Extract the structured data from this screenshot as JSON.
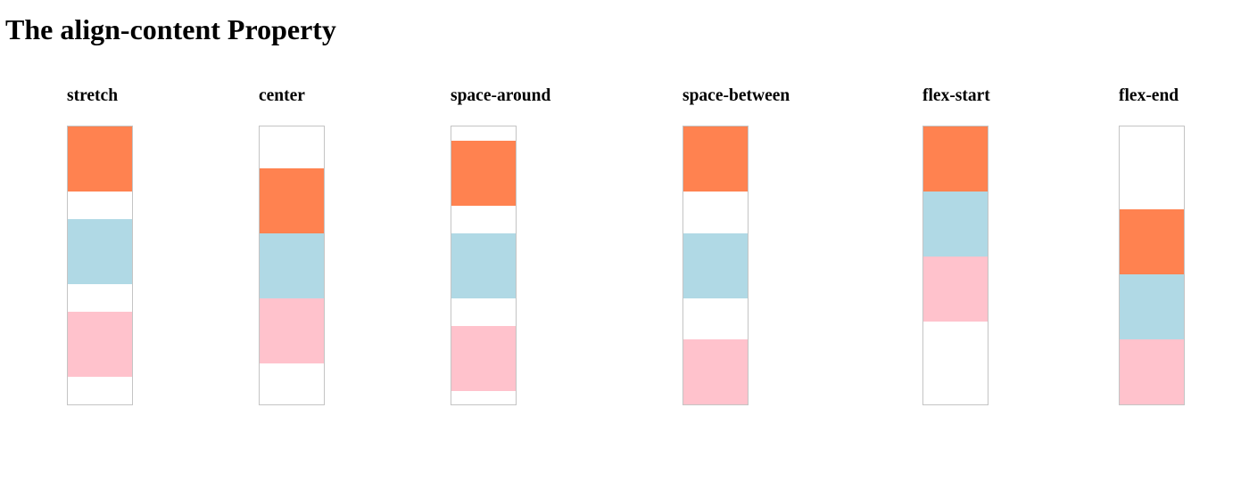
{
  "page": {
    "title": "The align-content Property"
  },
  "colors": {
    "item_1": "#ff8250",
    "item_2": "#b0d9e5",
    "item_3": "#ffc2cc",
    "container_border": "#c4c4c4"
  },
  "demos": [
    {
      "label": "stretch"
    },
    {
      "label": "center"
    },
    {
      "label": "space-around"
    },
    {
      "label": "space-between"
    },
    {
      "label": "flex-start"
    },
    {
      "label": "flex-end"
    }
  ]
}
